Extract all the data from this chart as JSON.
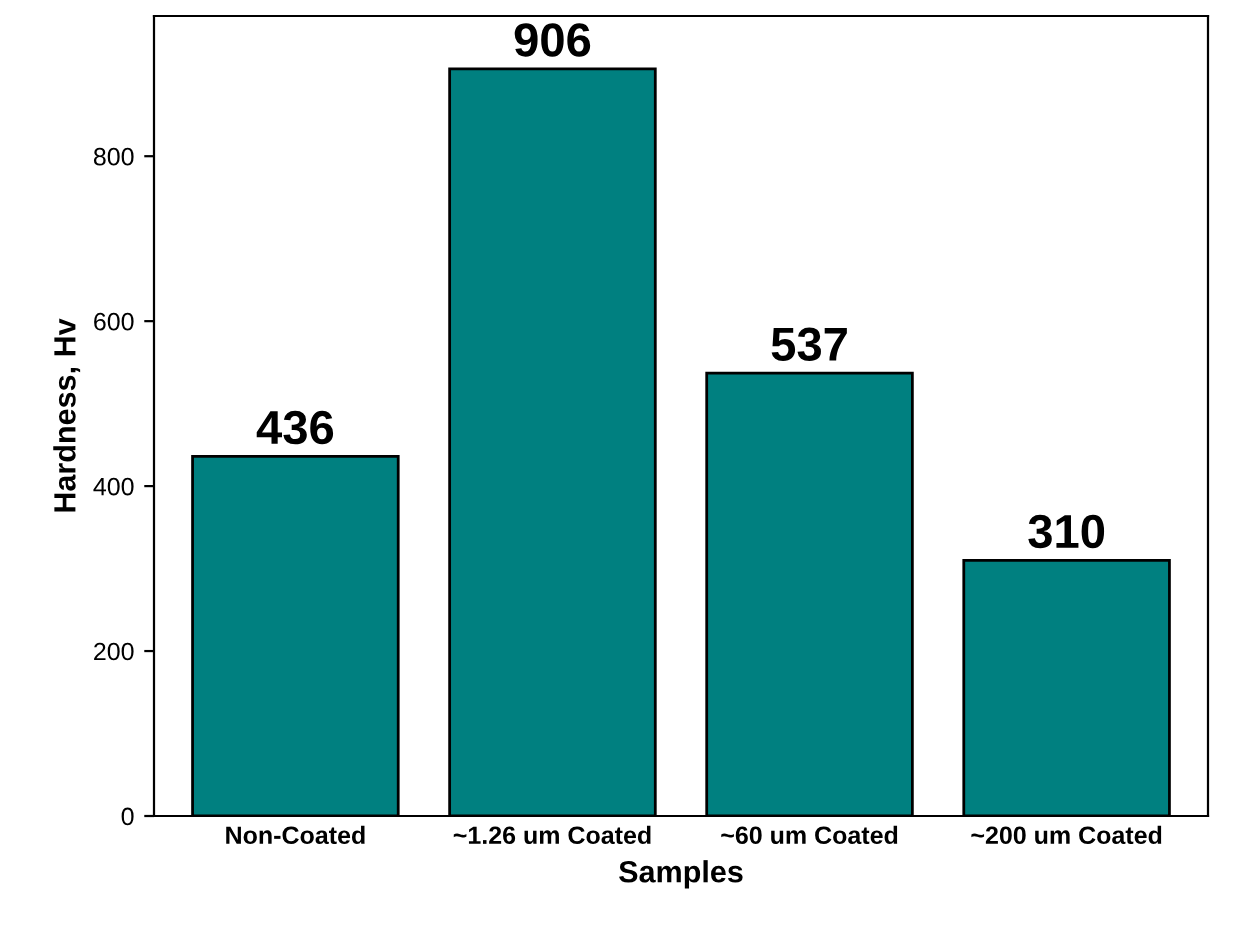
{
  "chart_data": {
    "type": "bar",
    "xlabel": "Samples",
    "ylabel": "Hardness, Hv",
    "categories": [
      "Non-Coated",
      "~1.26 um Coated",
      "~60 um Coated",
      "~200 um Coated"
    ],
    "values": [
      436,
      906,
      537,
      310
    ],
    "color": "#008080",
    "ylim": [
      0,
      970
    ],
    "yticks": [
      0,
      200,
      400,
      600,
      800
    ],
    "grid": false,
    "data_labels": true
  }
}
